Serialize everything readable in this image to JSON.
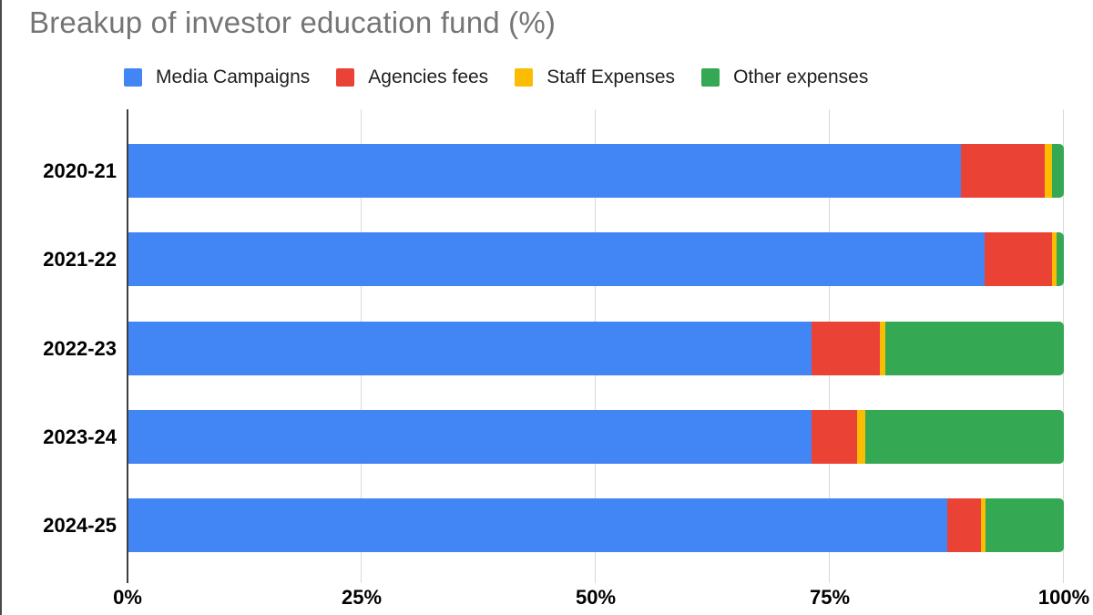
{
  "title": "Breakup of investor education fund (%)",
  "chart_data": {
    "type": "bar",
    "orientation": "horizontal",
    "stacked": true,
    "title": "Breakup of investor education fund (%)",
    "categories": [
      "2020-21",
      "2021-22",
      "2022-23",
      "2023-24",
      "2024-25"
    ],
    "series": [
      {
        "name": "Media Campaigns",
        "color": "#4285F4",
        "values": [
          89,
          91.5,
          73,
          73,
          87.5
        ]
      },
      {
        "name": "Agencies fees",
        "color": "#EA4335",
        "values": [
          9,
          7.2,
          7.3,
          4.9,
          3.6
        ]
      },
      {
        "name": "Staff Expenses",
        "color": "#FBBC04",
        "values": [
          0.7,
          0.5,
          0.6,
          0.9,
          0.5
        ]
      },
      {
        "name": "Other expenses",
        "color": "#34A853",
        "values": [
          1.3,
          0.8,
          19.1,
          21.2,
          8.4
        ]
      }
    ],
    "x_ticks": [
      {
        "label": "0%",
        "value": 0
      },
      {
        "label": "25%",
        "value": 25
      },
      {
        "label": "50%",
        "value": 50
      },
      {
        "label": "75%",
        "value": 75
      },
      {
        "label": "100%",
        "value": 100
      }
    ],
    "xlim": [
      0,
      100
    ],
    "unit": "%",
    "grid": true,
    "legend_position": "top",
    "xlabel": "",
    "ylabel": ""
  },
  "styles": {
    "title_color": "#757575",
    "axis_line_color": "#3f3f3f",
    "gridline_color": "#d9d9d9",
    "label_color": "#000000",
    "background": "#ffffff"
  }
}
